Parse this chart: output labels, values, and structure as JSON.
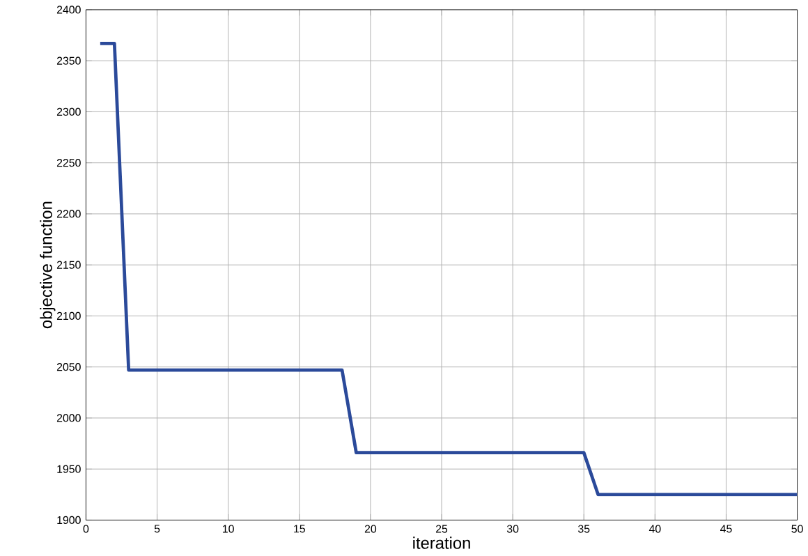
{
  "chart_data": {
    "type": "line",
    "xlabel": "iteration",
    "ylabel": "objective function",
    "x": [
      1,
      2,
      3,
      18,
      19,
      35,
      36,
      50
    ],
    "series": [
      {
        "color": "#2b4a9a",
        "values": [
          2367,
          2367,
          2047,
          2047,
          1966,
          1966,
          1925,
          1925
        ]
      }
    ],
    "xlim": [
      0,
      50
    ],
    "ylim": [
      1900,
      2400
    ],
    "xticks": [
      0,
      5,
      10,
      15,
      20,
      25,
      30,
      35,
      40,
      45,
      50
    ],
    "yticks": [
      1900,
      1950,
      2000,
      2050,
      2100,
      2150,
      2200,
      2250,
      2300,
      2350,
      2400
    ],
    "grid": true,
    "marker": "none",
    "line_style": "solid"
  }
}
